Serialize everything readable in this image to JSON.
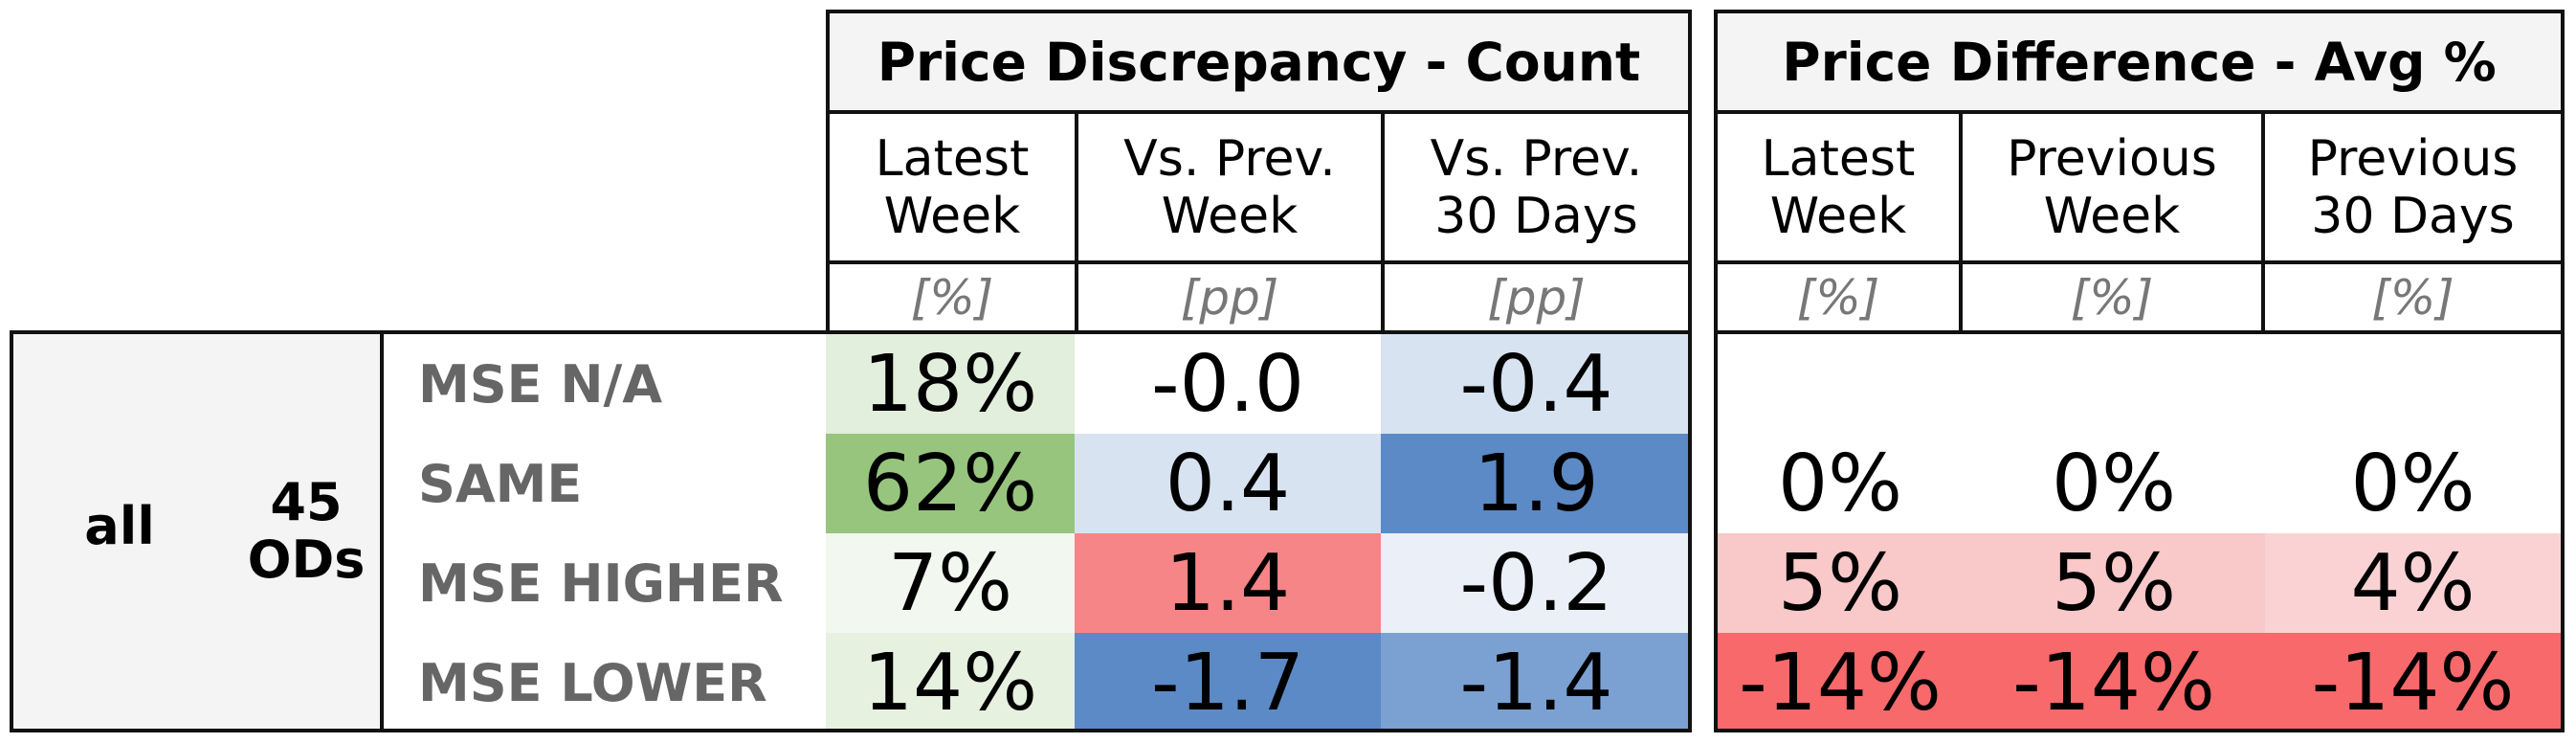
{
  "table": {
    "group_count": {
      "title": "Price Discrepancy - Count"
    },
    "group_avg": {
      "title": "Price Difference - Avg %"
    },
    "columns": [
      {
        "label": "Latest\nWeek",
        "unit": "[%]"
      },
      {
        "label": "Vs. Prev.\nWeek",
        "unit": "[pp]"
      },
      {
        "label": "Vs. Prev.\n30 Days",
        "unit": "[pp]"
      },
      {
        "label": "Latest\nWeek",
        "unit": "[%]"
      },
      {
        "label": "Previous\nWeek",
        "unit": "[%]"
      },
      {
        "label": "Previous\n30 Days",
        "unit": "[%]"
      }
    ],
    "segment": {
      "name": "all",
      "ods": "45\nODs"
    },
    "rows": [
      {
        "label": "MSE N/A",
        "values": [
          "18%",
          "-0.0",
          "-0.4",
          "",
          "",
          ""
        ],
        "colors": [
          "#e2efdc",
          "#ffffff",
          "#d8e3f1",
          "#ffffff",
          "#ffffff",
          "#ffffff"
        ]
      },
      {
        "label": "SAME",
        "values": [
          "62%",
          "0.4",
          "1.9",
          "0%",
          "0%",
          "0%"
        ],
        "colors": [
          "#97c57e",
          "#d8e3f1",
          "#5b8ac6",
          "#ffffff",
          "#ffffff",
          "#ffffff"
        ]
      },
      {
        "label": "MSE HIGHER",
        "values": [
          "7%",
          "1.4",
          "-0.2",
          "5%",
          "5%",
          "4%"
        ],
        "colors": [
          "#f2f7ef",
          "#f58586",
          "#ebf0f8",
          "#f9c8c9",
          "#f9c8c9",
          "#fad2d3"
        ]
      },
      {
        "label": "MSE LOWER",
        "values": [
          "14%",
          "-1.7",
          "-1.4",
          "-14%",
          "-14%",
          "-14%"
        ],
        "colors": [
          "#e6f1e0",
          "#5b8ac6",
          "#7ba1d3",
          "#f8696b",
          "#f8696b",
          "#f8696b"
        ]
      }
    ]
  },
  "chart_data": {
    "type": "table",
    "groups": [
      "Price Discrepancy - Count",
      "Price Difference - Avg %"
    ],
    "columns": [
      "Latest Week",
      "Vs. Prev. Week",
      "Vs. Prev. 30 Days",
      "Latest Week",
      "Previous Week",
      "Previous 30 Days"
    ],
    "units": [
      "[%]",
      "[pp]",
      "[pp]",
      "[%]",
      "[%]",
      "[%]"
    ],
    "segment": "all",
    "ods": "45 ODs",
    "rows": [
      "MSE N/A",
      "SAME",
      "MSE HIGHER",
      "MSE LOWER"
    ],
    "values": [
      [
        18,
        -0.0,
        -0.4,
        null,
        null,
        null
      ],
      [
        62,
        0.4,
        1.9,
        0,
        0,
        0
      ],
      [
        7,
        1.4,
        -0.2,
        5,
        5,
        4
      ],
      [
        14,
        -1.7,
        -1.4,
        -14,
        -14,
        -14
      ]
    ]
  }
}
